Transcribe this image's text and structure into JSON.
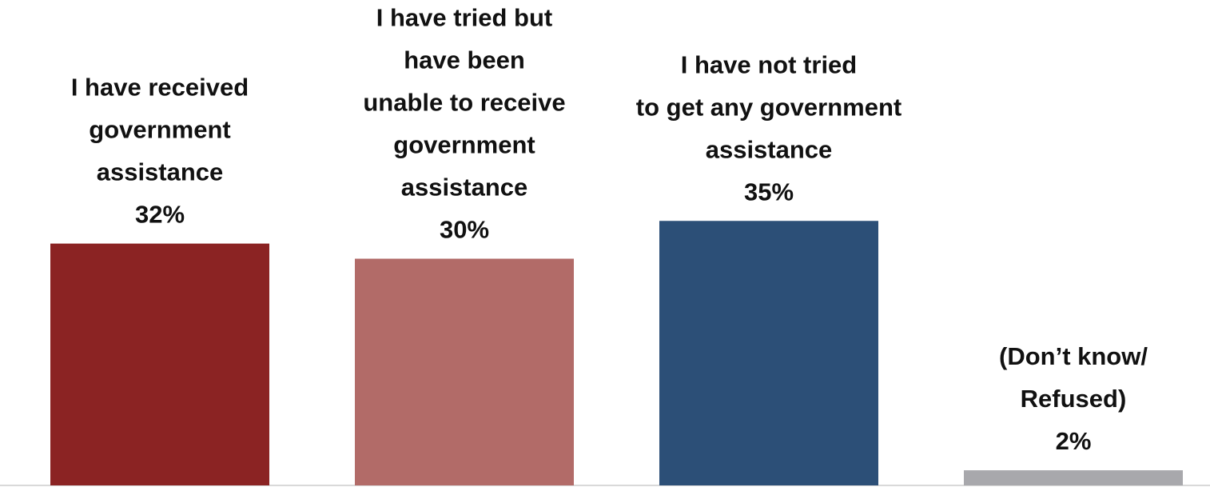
{
  "chart_data": {
    "type": "bar",
    "categories": [
      [
        "I have received",
        "government",
        "assistance"
      ],
      [
        "I have tried but",
        "have been",
        "unable to receive",
        "government",
        "assistance"
      ],
      [
        "I have not tried",
        "to get any government",
        "assistance"
      ],
      [
        "(Don’t know/",
        "Refused)"
      ]
    ],
    "values": [
      32,
      30,
      35,
      2
    ],
    "value_labels": [
      "32%",
      "30%",
      "35%",
      "2%"
    ],
    "colors": [
      "#8b2323",
      "#b26b68",
      "#2c4f77",
      "#a8a8ac"
    ],
    "axis_color": "#d9d9d9",
    "ylim": [
      0,
      35
    ],
    "grid": false,
    "legend": "none"
  }
}
